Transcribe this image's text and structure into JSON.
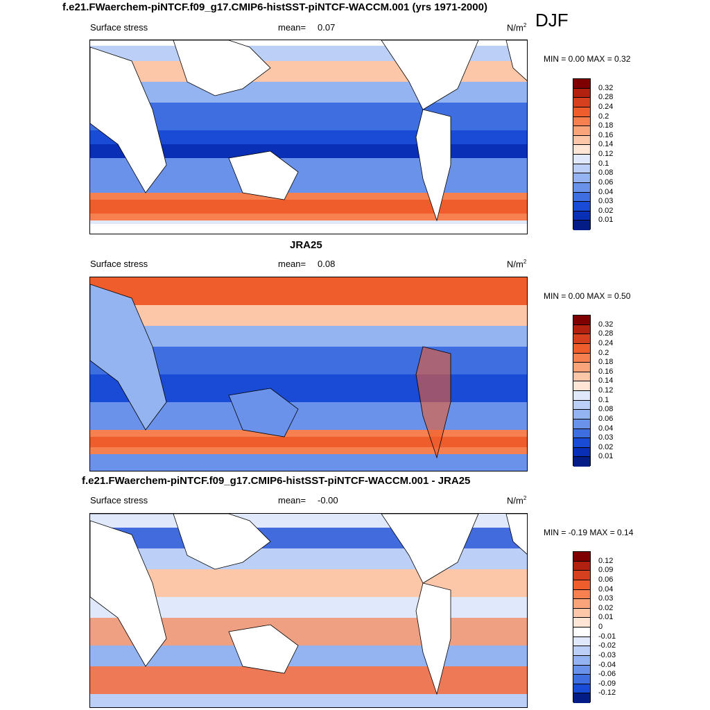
{
  "season": "DJF",
  "panels": [
    {
      "title": "f.e21.FWaerchem-piNTCF.f09_g17.CMIP6-histSST-piNTCF-WACCM.001 (yrs 1971-2000)",
      "left_label": "Surface stress",
      "mean_label": "mean=",
      "mean_value": "0.07",
      "unit": "N/m",
      "unit_exp": "2",
      "min_max": "MIN =   0.00 MAX =   0.32",
      "colorbar_labels": [
        "0.32",
        "0.28",
        "0.24",
        "0.2",
        "0.18",
        "0.16",
        "0.14",
        "0.12",
        "0.1",
        "0.08",
        "0.06",
        "0.04",
        "0.03",
        "0.02",
        "0.01"
      ],
      "colorbar_colors": [
        "#7f0000",
        "#b2200f",
        "#d7401f",
        "#f05d2d",
        "#f6804f",
        "#f9a47a",
        "#fcc6a9",
        "#fee5d6",
        "#dfe9fb",
        "#bcd0f7",
        "#93b3f1",
        "#6a92ea",
        "#3f6ee1",
        "#1a4bd6",
        "#0a2fb7",
        "#041c86"
      ]
    },
    {
      "title": "JRA25",
      "left_label": "Surface stress",
      "mean_label": "mean=",
      "mean_value": "0.08",
      "unit": "N/m",
      "unit_exp": "2",
      "min_max": "MIN =   0.00 MAX =   0.50",
      "colorbar_labels": [
        "0.32",
        "0.28",
        "0.24",
        "0.2",
        "0.18",
        "0.16",
        "0.14",
        "0.12",
        "0.1",
        "0.08",
        "0.06",
        "0.04",
        "0.03",
        "0.02",
        "0.01"
      ],
      "colorbar_colors": [
        "#7f0000",
        "#b2200f",
        "#d7401f",
        "#f05d2d",
        "#f6804f",
        "#f9a47a",
        "#fcc6a9",
        "#fee5d6",
        "#dfe9fb",
        "#bcd0f7",
        "#93b3f1",
        "#6a92ea",
        "#3f6ee1",
        "#1a4bd6",
        "#0a2fb7",
        "#041c86"
      ]
    },
    {
      "title": "f.e21.FWaerchem-piNTCF.f09_g17.CMIP6-histSST-piNTCF-WACCM.001 - JRA25",
      "left_label": "Surface stress",
      "mean_label": "mean=",
      "mean_value": "-0.00",
      "unit": "N/m",
      "unit_exp": "2",
      "min_max": "MIN =  -0.19 MAX =   0.14",
      "colorbar_labels": [
        "0.12",
        "0.09",
        "0.06",
        "0.04",
        "0.03",
        "0.02",
        "0.01",
        "0",
        "-0.01",
        "-0.02",
        "-0.03",
        "-0.04",
        "-0.06",
        "-0.09",
        "-0.12"
      ],
      "colorbar_colors": [
        "#7f0000",
        "#b2200f",
        "#d7401f",
        "#f05d2d",
        "#f6804f",
        "#f9a47a",
        "#fcc6a9",
        "#fee5d6",
        "#ffffff",
        "#dfe9fb",
        "#bcd0f7",
        "#93b3f1",
        "#6a92ea",
        "#3f6ee1",
        "#1a4bd6",
        "#041c86"
      ]
    }
  ]
}
